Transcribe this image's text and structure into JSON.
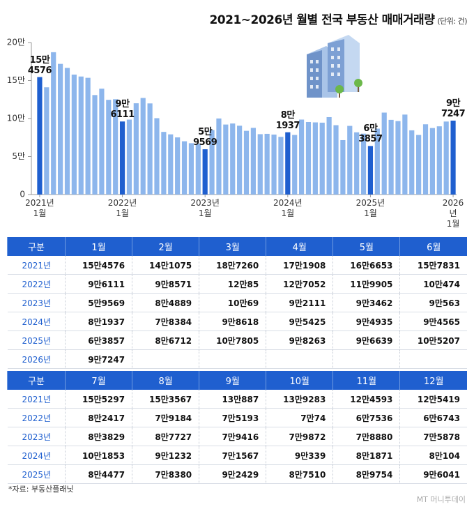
{
  "chart_data": {
    "type": "bar",
    "title": "2021~2026년 월별 전국 부동산 매매거래량",
    "subtitle": "(단위: 건)",
    "categories": [
      "2021년\n1월",
      null,
      null,
      null,
      null,
      null,
      null,
      null,
      null,
      null,
      null,
      null,
      "2022년\n1월",
      null,
      null,
      null,
      null,
      null,
      null,
      null,
      null,
      null,
      null,
      null,
      "2023년\n1월",
      null,
      null,
      null,
      null,
      null,
      null,
      null,
      null,
      null,
      null,
      null,
      "2024년\n1월",
      null,
      null,
      null,
      null,
      null,
      null,
      null,
      null,
      null,
      null,
      null,
      "2025년\n1월",
      null,
      null,
      null,
      null,
      null,
      null,
      null,
      null,
      null,
      null,
      null,
      "2026년\n1월"
    ],
    "values": [
      154576,
      141075,
      187260,
      171908,
      166653,
      157831,
      155297,
      153567,
      130887,
      139283,
      124593,
      125419,
      96111,
      98571,
      120085,
      127052,
      119905,
      100474,
      82417,
      79184,
      75193,
      70074,
      67536,
      66743,
      59569,
      84889,
      100069,
      92111,
      93462,
      90563,
      83829,
      87727,
      79416,
      79872,
      78880,
      75878,
      81937,
      78384,
      98618,
      95425,
      94935,
      94565,
      101853,
      91232,
      71567,
      90339,
      81871,
      80104,
      63857,
      86712,
      107805,
      98263,
      96639,
      105207,
      84477,
      78380,
      92429,
      87510,
      89754,
      96041,
      97247
    ],
    "value_labels": [
      "15만\n4576",
      null,
      null,
      null,
      null,
      null,
      null,
      null,
      null,
      null,
      null,
      null,
      "9만\n6111",
      null,
      null,
      null,
      null,
      null,
      null,
      null,
      null,
      null,
      null,
      null,
      "5만\n9569",
      null,
      null,
      null,
      null,
      null,
      null,
      null,
      null,
      null,
      null,
      null,
      "8만\n1937",
      null,
      null,
      null,
      null,
      null,
      null,
      null,
      null,
      null,
      null,
      null,
      "6만\n3857",
      null,
      null,
      null,
      null,
      null,
      null,
      null,
      null,
      null,
      null,
      null,
      "9만\n7247"
    ],
    "color": "#8db6ec",
    "highlight_color": "#1f5fcf",
    "ylim": [
      0,
      200000
    ],
    "yticks": [
      0,
      {
        "value": 50000,
        "label": "5만"
      },
      {
        "value": 100000,
        "label": "10만"
      },
      {
        "value": 150000,
        "label": "15만"
      },
      {
        "value": 200000,
        "label": "20만"
      }
    ]
  },
  "tables": [
    {
      "header": [
        "구분",
        "1월",
        "2월",
        "3월",
        "4월",
        "5월",
        "6월"
      ],
      "rows": [
        [
          "2021년",
          "15만4576",
          "14만1075",
          "18만7260",
          "17만1908",
          "16만6653",
          "15만7831"
        ],
        [
          "2022년",
          "9만6111",
          "9만8571",
          "12만85",
          "12만7052",
          "11만9905",
          "10만474"
        ],
        [
          "2023년",
          "5만9569",
          "8만4889",
          "10만69",
          "9만2111",
          "9만3462",
          "9만563"
        ],
        [
          "2024년",
          "8만1937",
          "7만8384",
          "9만8618",
          "9만5425",
          "9만4935",
          "9만4565"
        ],
        [
          "2025년",
          "6만3857",
          "8만6712",
          "10만7805",
          "9만8263",
          "9만6639",
          "10만5207"
        ],
        [
          "2026년",
          "9만7247"
        ]
      ]
    },
    {
      "header": [
        "구분",
        "7월",
        "8월",
        "9월",
        "10월",
        "11월",
        "12월"
      ],
      "rows": [
        [
          "2021년",
          "15만5297",
          "15만3567",
          "13만887",
          "13만9283",
          "12만4593",
          "12만5419"
        ],
        [
          "2022년",
          "8만2417",
          "7만9184",
          "7만5193",
          "7만74",
          "6만7536",
          "6만6743"
        ],
        [
          "2023년",
          "8만3829",
          "8만7727",
          "7만9416",
          "7만9872",
          "7만8880",
          "7만5878"
        ],
        [
          "2024년",
          "10만1853",
          "9만1232",
          "7만1567",
          "9만339",
          "8만1871",
          "8만104"
        ],
        [
          "2025년",
          "8만4477",
          "7만8380",
          "9만2429",
          "8만7510",
          "8만9754",
          "9만6041"
        ]
      ]
    }
  ],
  "source": "*자료: 부동산플래닛",
  "watermark": "MT 머니투데이"
}
